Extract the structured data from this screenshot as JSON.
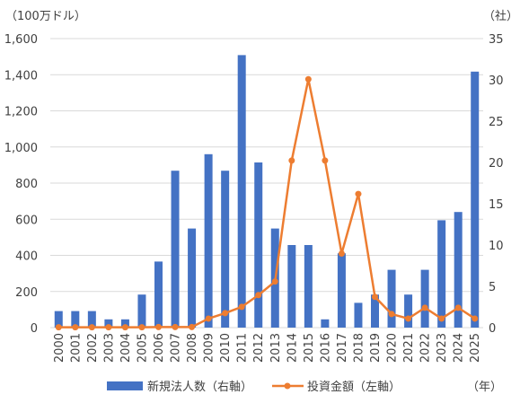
{
  "chart_data": {
    "type": "bar",
    "left_unit": "（100万ドル）",
    "right_unit": "（社）",
    "x_unit": "（年）",
    "categories": [
      "2000",
      "2001",
      "2002",
      "2003",
      "2004",
      "2005",
      "2006",
      "2007",
      "2008",
      "2009",
      "2010",
      "2011",
      "2012",
      "2013",
      "2014",
      "2015",
      "2016",
      "2017",
      "2018",
      "2019",
      "2020",
      "2021",
      "2022",
      "2023",
      "2024",
      "2025"
    ],
    "left_axis": {
      "min": 0,
      "max": 1600,
      "step": 200,
      "tick_labels": [
        "0",
        "200",
        "400",
        "600",
        "800",
        "1,000",
        "1,200",
        "1,400",
        "1,600"
      ]
    },
    "right_axis": {
      "min": 0,
      "max": 35,
      "step": 5,
      "tick_labels": [
        "0",
        "5",
        "10",
        "15",
        "20",
        "25",
        "30",
        "35"
      ]
    },
    "series": [
      {
        "name": "新規法人数（右軸）",
        "kind": "bar",
        "axis": "right",
        "color": "#4472c4",
        "values": [
          2,
          2,
          2,
          1,
          1,
          4,
          8,
          19,
          12,
          21,
          19,
          33,
          20,
          12,
          10,
          10,
          1,
          9,
          3,
          4,
          7,
          4,
          7,
          13,
          14,
          31
        ]
      },
      {
        "name": "投資金額（左軸）",
        "kind": "line",
        "axis": "left",
        "color": "#ed7d31",
        "values": [
          2,
          2,
          2,
          2,
          2,
          2,
          3,
          3,
          3,
          50,
          80,
          115,
          180,
          255,
          925,
          1375,
          925,
          410,
          740,
          170,
          75,
          50,
          110,
          50,
          110,
          50
        ]
      }
    ],
    "grid": true,
    "legend_position": "bottom"
  }
}
